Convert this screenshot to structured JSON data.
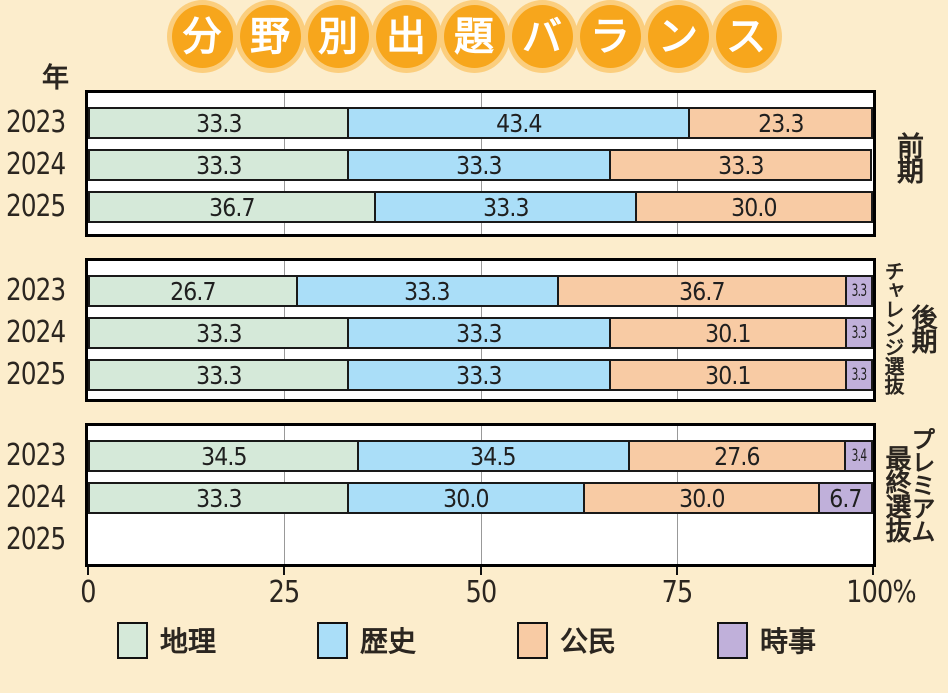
{
  "title": {
    "text": "分野別出題バランス",
    "circle_color": "#f7a61c",
    "halo_color": "#fbce7e",
    "text_color": "#ffffff"
  },
  "page_background": "#fcedcc",
  "chart_data": {
    "type": "bar",
    "stacked": true,
    "horizontal": true,
    "title": "分野別出題バランス",
    "y_axis_label": "年",
    "xlim": [
      0,
      100
    ],
    "grid": true,
    "gridline_positions": [
      25,
      50,
      75
    ],
    "x_ticks": [
      {
        "pos": 0,
        "label": "0"
      },
      {
        "pos": 25,
        "label": "25"
      },
      {
        "pos": 50,
        "label": "50"
      },
      {
        "pos": 75,
        "label": "75"
      },
      {
        "pos": 100,
        "label": "100%"
      }
    ],
    "categories": [
      "地理",
      "歴史",
      "公民",
      "時事"
    ],
    "series_colors": [
      "#d5e9d9",
      "#aadef8",
      "#f8cba4",
      "#c0b0da"
    ],
    "groups": [
      {
        "label": "前期",
        "label_outer": "前期",
        "label_inner": "",
        "rows": [
          {
            "year": "2023",
            "values": [
              33.3,
              43.4,
              23.3
            ],
            "labels": [
              "33.3",
              "43.4",
              "23.3"
            ]
          },
          {
            "year": "2024",
            "values": [
              33.3,
              33.3,
              33.3
            ],
            "labels": [
              "33.3",
              "33.3",
              "33.3"
            ]
          },
          {
            "year": "2025",
            "values": [
              36.7,
              33.3,
              30.0
            ],
            "labels": [
              "36.7",
              "33.3",
              "30.0"
            ]
          }
        ]
      },
      {
        "label": "後期チャレンジ選抜",
        "label_outer": "後期",
        "label_inner": "チャレンジ選抜",
        "rows": [
          {
            "year": "2023",
            "values": [
              26.7,
              33.3,
              36.7,
              3.3
            ],
            "labels": [
              "26.7",
              "33.3",
              "36.7",
              "3.3"
            ]
          },
          {
            "year": "2024",
            "values": [
              33.3,
              33.3,
              30.1,
              3.3
            ],
            "labels": [
              "33.3",
              "33.3",
              "30.1",
              "3.3"
            ]
          },
          {
            "year": "2025",
            "values": [
              33.3,
              33.3,
              30.1,
              3.3
            ],
            "labels": [
              "33.3",
              "33.3",
              "30.1",
              "3.3"
            ]
          }
        ]
      },
      {
        "label": "プレミアム最終選抜",
        "label_outer": "プレミアム",
        "label_inner": "最終選抜",
        "rows": [
          {
            "year": "2023",
            "values": [
              34.5,
              34.5,
              27.6,
              3.4
            ],
            "labels": [
              "34.5",
              "34.5",
              "27.6",
              "3.4"
            ]
          },
          {
            "year": "2024",
            "values": [
              33.3,
              30.0,
              30.0,
              6.7
            ],
            "labels": [
              "33.3",
              "30.0",
              "30.0",
              "6.7"
            ]
          },
          {
            "year": "2025",
            "values": [],
            "labels": []
          }
        ]
      }
    ]
  },
  "legend": {
    "items": [
      {
        "label": "地理",
        "color": "#d5e9d9"
      },
      {
        "label": "歴史",
        "color": "#aadef8"
      },
      {
        "label": "公民",
        "color": "#f8cba4"
      },
      {
        "label": "時事",
        "color": "#c0b0da"
      }
    ]
  }
}
